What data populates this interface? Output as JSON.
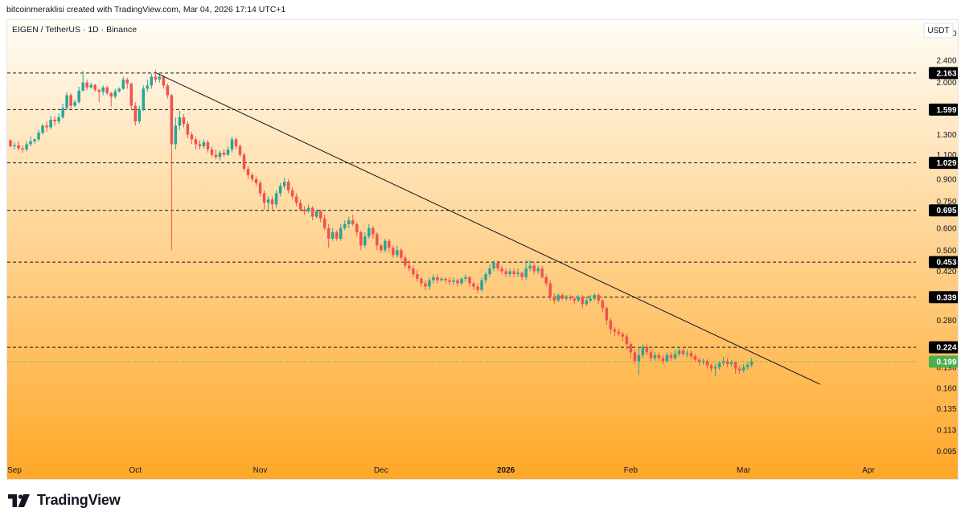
{
  "header": {
    "text": "bitcoinmeraklisi created with TradingView.com, Mar 04, 2026 17:14 UTC+1"
  },
  "footer": {
    "brand": "TradingView"
  },
  "colors": {
    "up": "#26a69a",
    "down": "#ef5350",
    "gradient_top": "#fffdf6",
    "gradient_bottom": "#ffa726",
    "level_label_bg": "#000000",
    "last_price_bg": "#4caf50"
  },
  "chart_data": {
    "type": "candlestick",
    "symbol_title": "EIGEN / TetherUS · 1D · Binance",
    "currency": "USDT",
    "y_scale": "log",
    "ylim": [
      0.085,
      3.35
    ],
    "y_ticks": [
      "3.000",
      "2.400",
      "2.000",
      "1.600",
      "1.300",
      "1.100",
      "0.900",
      "0.750",
      "0.600",
      "0.500",
      "0.420",
      "0.340",
      "0.280",
      "0.230",
      "0.190",
      "0.160",
      "0.135",
      "0.113",
      "0.095"
    ],
    "x_labels": [
      {
        "label": "Sep",
        "date": "2025-09-01"
      },
      {
        "label": "Oct",
        "date": "2025-10-01"
      },
      {
        "label": "Nov",
        "date": "2025-11-01"
      },
      {
        "label": "Dec",
        "date": "2025-12-01"
      },
      {
        "label": "2026",
        "date": "2026-01-01",
        "bold": true
      },
      {
        "label": "Feb",
        "date": "2026-02-01"
      },
      {
        "label": "Mar",
        "date": "2026-03-01"
      },
      {
        "label": "Apr",
        "date": "2026-04-01"
      }
    ],
    "x_start_date": "2025-08-31",
    "x_end_date": "2026-04-12",
    "horizontal_levels": [
      2.163,
      1.599,
      1.029,
      0.695,
      0.453,
      0.339,
      0.224
    ],
    "last_price": 0.199,
    "trendline": {
      "from": {
        "date": "2025-10-06",
        "value": 2.17
      },
      "to": {
        "date": "2026-03-20",
        "value": 0.165
      }
    },
    "candles": [
      [
        "2025-08-31",
        1.24,
        1.18,
        1.25,
        1.17
      ],
      [
        "2025-09-01",
        1.18,
        1.19,
        1.22,
        1.15
      ],
      [
        "2025-09-02",
        1.19,
        1.16,
        1.23,
        1.14
      ],
      [
        "2025-09-03",
        1.16,
        1.15,
        1.19,
        1.12
      ],
      [
        "2025-09-04",
        1.15,
        1.2,
        1.23,
        1.13
      ],
      [
        "2025-09-05",
        1.2,
        1.23,
        1.28,
        1.18
      ],
      [
        "2025-09-06",
        1.23,
        1.25,
        1.26,
        1.2
      ],
      [
        "2025-09-07",
        1.25,
        1.32,
        1.35,
        1.23
      ],
      [
        "2025-09-08",
        1.32,
        1.4,
        1.42,
        1.3
      ],
      [
        "2025-09-09",
        1.4,
        1.38,
        1.45,
        1.33
      ],
      [
        "2025-09-10",
        1.38,
        1.47,
        1.52,
        1.36
      ],
      [
        "2025-09-11",
        1.47,
        1.45,
        1.51,
        1.4
      ],
      [
        "2025-09-12",
        1.45,
        1.5,
        1.55,
        1.42
      ],
      [
        "2025-09-13",
        1.5,
        1.62,
        1.68,
        1.48
      ],
      [
        "2025-09-14",
        1.62,
        1.8,
        1.85,
        1.6
      ],
      [
        "2025-09-15",
        1.8,
        1.65,
        1.83,
        1.6
      ],
      [
        "2025-09-16",
        1.65,
        1.7,
        1.74,
        1.63
      ],
      [
        "2025-09-17",
        1.7,
        1.87,
        1.93,
        1.68
      ],
      [
        "2025-09-18",
        1.87,
        2.0,
        2.2,
        1.86
      ],
      [
        "2025-09-19",
        2.0,
        1.92,
        2.05,
        1.88
      ],
      [
        "2025-09-20",
        1.92,
        1.96,
        2.0,
        1.9
      ],
      [
        "2025-09-21",
        1.96,
        1.88,
        1.98,
        1.85
      ],
      [
        "2025-09-22",
        1.88,
        1.85,
        1.9,
        1.7
      ],
      [
        "2025-09-23",
        1.85,
        1.92,
        1.95,
        1.8
      ],
      [
        "2025-09-24",
        1.92,
        1.83,
        1.94,
        1.8
      ],
      [
        "2025-09-25",
        1.83,
        1.78,
        1.85,
        1.64
      ],
      [
        "2025-09-26",
        1.78,
        1.86,
        1.9,
        1.75
      ],
      [
        "2025-09-27",
        1.86,
        1.9,
        1.92,
        1.84
      ],
      [
        "2025-09-28",
        1.9,
        2.05,
        2.1,
        1.88
      ],
      [
        "2025-09-29",
        2.05,
        1.98,
        2.08,
        1.9
      ],
      [
        "2025-09-30",
        1.98,
        1.65,
        2.0,
        1.6
      ],
      [
        "2025-10-01",
        1.65,
        1.45,
        1.7,
        1.4
      ],
      [
        "2025-10-02",
        1.45,
        1.6,
        1.65,
        1.42
      ],
      [
        "2025-10-03",
        1.6,
        1.9,
        1.95,
        1.58
      ],
      [
        "2025-10-04",
        1.9,
        1.95,
        2.05,
        1.85
      ],
      [
        "2025-10-05",
        1.95,
        2.1,
        2.15,
        1.9
      ],
      [
        "2025-10-06",
        2.1,
        2.05,
        2.22,
        2.0
      ],
      [
        "2025-10-07",
        2.05,
        2.1,
        2.15,
        2.0
      ],
      [
        "2025-10-08",
        2.1,
        1.95,
        2.12,
        1.9
      ],
      [
        "2025-10-09",
        1.95,
        1.8,
        1.98,
        1.75
      ],
      [
        "2025-10-10",
        1.8,
        1.2,
        1.82,
        0.5
      ],
      [
        "2025-10-11",
        1.2,
        1.4,
        1.5,
        1.15
      ],
      [
        "2025-10-12",
        1.4,
        1.5,
        1.58,
        1.35
      ],
      [
        "2025-10-13",
        1.5,
        1.42,
        1.54,
        1.38
      ],
      [
        "2025-10-14",
        1.42,
        1.3,
        1.45,
        1.26
      ],
      [
        "2025-10-15",
        1.3,
        1.25,
        1.33,
        1.2
      ],
      [
        "2025-10-16",
        1.25,
        1.2,
        1.28,
        1.15
      ],
      [
        "2025-10-17",
        1.2,
        1.18,
        1.24,
        1.15
      ],
      [
        "2025-10-18",
        1.18,
        1.22,
        1.25,
        1.16
      ],
      [
        "2025-10-19",
        1.22,
        1.15,
        1.24,
        1.12
      ],
      [
        "2025-10-20",
        1.15,
        1.1,
        1.18,
        1.08
      ],
      [
        "2025-10-21",
        1.1,
        1.08,
        1.15,
        1.06
      ],
      [
        "2025-10-22",
        1.08,
        1.12,
        1.14,
        1.05
      ],
      [
        "2025-10-23",
        1.12,
        1.1,
        1.15,
        1.08
      ],
      [
        "2025-10-24",
        1.1,
        1.15,
        1.18,
        1.09
      ],
      [
        "2025-10-25",
        1.15,
        1.25,
        1.28,
        1.12
      ],
      [
        "2025-10-26",
        1.25,
        1.18,
        1.27,
        1.15
      ],
      [
        "2025-10-27",
        1.18,
        1.1,
        1.2,
        1.08
      ],
      [
        "2025-10-28",
        1.1,
        0.98,
        1.12,
        0.96
      ],
      [
        "2025-10-29",
        0.98,
        0.93,
        1.0,
        0.9
      ],
      [
        "2025-10-30",
        0.93,
        0.9,
        0.95,
        0.88
      ],
      [
        "2025-10-31",
        0.9,
        0.87,
        0.92,
        0.85
      ],
      [
        "2025-11-01",
        0.87,
        0.8,
        0.89,
        0.78
      ],
      [
        "2025-11-02",
        0.8,
        0.74,
        0.82,
        0.7
      ],
      [
        "2025-11-03",
        0.74,
        0.76,
        0.78,
        0.7
      ],
      [
        "2025-11-04",
        0.76,
        0.73,
        0.78,
        0.7
      ],
      [
        "2025-11-05",
        0.73,
        0.8,
        0.82,
        0.71
      ],
      [
        "2025-11-06",
        0.8,
        0.85,
        0.87,
        0.78
      ],
      [
        "2025-11-07",
        0.85,
        0.88,
        0.91,
        0.83
      ],
      [
        "2025-11-08",
        0.88,
        0.82,
        0.9,
        0.8
      ],
      [
        "2025-11-09",
        0.82,
        0.78,
        0.84,
        0.76
      ],
      [
        "2025-11-10",
        0.78,
        0.74,
        0.8,
        0.72
      ],
      [
        "2025-11-11",
        0.74,
        0.7,
        0.76,
        0.69
      ],
      [
        "2025-11-12",
        0.7,
        0.69,
        0.72,
        0.67
      ],
      [
        "2025-11-13",
        0.69,
        0.71,
        0.73,
        0.68
      ],
      [
        "2025-11-14",
        0.71,
        0.66,
        0.72,
        0.64
      ],
      [
        "2025-11-15",
        0.66,
        0.69,
        0.7,
        0.65
      ],
      [
        "2025-11-16",
        0.69,
        0.65,
        0.7,
        0.63
      ],
      [
        "2025-11-17",
        0.65,
        0.6,
        0.67,
        0.59
      ],
      [
        "2025-11-18",
        0.6,
        0.55,
        0.62,
        0.51
      ],
      [
        "2025-11-19",
        0.55,
        0.58,
        0.6,
        0.54
      ],
      [
        "2025-11-20",
        0.58,
        0.55,
        0.59,
        0.54
      ],
      [
        "2025-11-21",
        0.55,
        0.6,
        0.62,
        0.54
      ],
      [
        "2025-11-22",
        0.6,
        0.62,
        0.64,
        0.59
      ],
      [
        "2025-11-23",
        0.62,
        0.64,
        0.66,
        0.6
      ],
      [
        "2025-11-24",
        0.64,
        0.62,
        0.67,
        0.61
      ],
      [
        "2025-11-25",
        0.62,
        0.58,
        0.63,
        0.56
      ],
      [
        "2025-11-26",
        0.58,
        0.52,
        0.59,
        0.5
      ],
      [
        "2025-11-27",
        0.52,
        0.56,
        0.58,
        0.51
      ],
      [
        "2025-11-28",
        0.56,
        0.6,
        0.62,
        0.55
      ],
      [
        "2025-11-29",
        0.6,
        0.57,
        0.61,
        0.55
      ],
      [
        "2025-11-30",
        0.57,
        0.52,
        0.58,
        0.5
      ],
      [
        "2025-12-01",
        0.52,
        0.5,
        0.53,
        0.49
      ],
      [
        "2025-12-02",
        0.5,
        0.54,
        0.55,
        0.49
      ],
      [
        "2025-12-03",
        0.54,
        0.51,
        0.55,
        0.49
      ],
      [
        "2025-12-04",
        0.51,
        0.48,
        0.52,
        0.47
      ],
      [
        "2025-12-05",
        0.48,
        0.5,
        0.52,
        0.47
      ],
      [
        "2025-12-06",
        0.5,
        0.47,
        0.51,
        0.46
      ],
      [
        "2025-12-07",
        0.47,
        0.44,
        0.48,
        0.43
      ],
      [
        "2025-12-08",
        0.44,
        0.43,
        0.46,
        0.42
      ],
      [
        "2025-12-09",
        0.43,
        0.41,
        0.44,
        0.4
      ],
      [
        "2025-12-10",
        0.41,
        0.395,
        0.425,
        0.385
      ],
      [
        "2025-12-11",
        0.395,
        0.38,
        0.4,
        0.37
      ],
      [
        "2025-12-12",
        0.38,
        0.37,
        0.39,
        0.36
      ],
      [
        "2025-12-13",
        0.37,
        0.39,
        0.4,
        0.36
      ],
      [
        "2025-12-14",
        0.39,
        0.4,
        0.41,
        0.38
      ],
      [
        "2025-12-15",
        0.4,
        0.39,
        0.41,
        0.38
      ],
      [
        "2025-12-16",
        0.39,
        0.395,
        0.4,
        0.385
      ],
      [
        "2025-12-17",
        0.395,
        0.39,
        0.4,
        0.38
      ],
      [
        "2025-12-18",
        0.39,
        0.385,
        0.4,
        0.375
      ],
      [
        "2025-12-19",
        0.385,
        0.39,
        0.4,
        0.375
      ],
      [
        "2025-12-20",
        0.39,
        0.38,
        0.395,
        0.37
      ],
      [
        "2025-12-21",
        0.38,
        0.395,
        0.4,
        0.375
      ],
      [
        "2025-12-22",
        0.395,
        0.4,
        0.41,
        0.385
      ],
      [
        "2025-12-23",
        0.4,
        0.38,
        0.405,
        0.37
      ],
      [
        "2025-12-24",
        0.38,
        0.37,
        0.385,
        0.36
      ],
      [
        "2025-12-25",
        0.37,
        0.36,
        0.38,
        0.35
      ],
      [
        "2025-12-26",
        0.36,
        0.39,
        0.4,
        0.355
      ],
      [
        "2025-12-27",
        0.39,
        0.41,
        0.42,
        0.38
      ],
      [
        "2025-12-28",
        0.41,
        0.43,
        0.445,
        0.4
      ],
      [
        "2025-12-29",
        0.43,
        0.45,
        0.46,
        0.42
      ],
      [
        "2025-12-30",
        0.45,
        0.43,
        0.46,
        0.42
      ],
      [
        "2025-12-31",
        0.43,
        0.42,
        0.44,
        0.41
      ],
      [
        "2026-01-01",
        0.42,
        0.41,
        0.43,
        0.4
      ],
      [
        "2026-01-02",
        0.41,
        0.42,
        0.43,
        0.4
      ],
      [
        "2026-01-03",
        0.42,
        0.41,
        0.43,
        0.4
      ],
      [
        "2026-01-04",
        0.41,
        0.415,
        0.43,
        0.4
      ],
      [
        "2026-01-05",
        0.415,
        0.4,
        0.42,
        0.39
      ],
      [
        "2026-01-06",
        0.4,
        0.43,
        0.46,
        0.39
      ],
      [
        "2026-01-07",
        0.43,
        0.44,
        0.46,
        0.42
      ],
      [
        "2026-01-08",
        0.44,
        0.42,
        0.45,
        0.41
      ],
      [
        "2026-01-09",
        0.42,
        0.43,
        0.44,
        0.41
      ],
      [
        "2026-01-10",
        0.43,
        0.4,
        0.44,
        0.395
      ],
      [
        "2026-01-11",
        0.4,
        0.38,
        0.41,
        0.37
      ],
      [
        "2026-01-12",
        0.38,
        0.34,
        0.39,
        0.33
      ],
      [
        "2026-01-13",
        0.34,
        0.33,
        0.35,
        0.32
      ],
      [
        "2026-01-14",
        0.33,
        0.345,
        0.35,
        0.325
      ],
      [
        "2026-01-15",
        0.345,
        0.335,
        0.35,
        0.33
      ],
      [
        "2026-01-16",
        0.335,
        0.34,
        0.345,
        0.33
      ],
      [
        "2026-01-17",
        0.34,
        0.335,
        0.345,
        0.33
      ],
      [
        "2026-01-18",
        0.335,
        0.33,
        0.34,
        0.32
      ],
      [
        "2026-01-19",
        0.33,
        0.34,
        0.345,
        0.325
      ],
      [
        "2026-01-20",
        0.34,
        0.32,
        0.345,
        0.31
      ],
      [
        "2026-01-21",
        0.32,
        0.33,
        0.34,
        0.315
      ],
      [
        "2026-01-22",
        0.33,
        0.335,
        0.345,
        0.325
      ],
      [
        "2026-01-23",
        0.335,
        0.345,
        0.35,
        0.33
      ],
      [
        "2026-01-24",
        0.345,
        0.33,
        0.35,
        0.32
      ],
      [
        "2026-01-25",
        0.33,
        0.31,
        0.335,
        0.3
      ],
      [
        "2026-01-26",
        0.31,
        0.28,
        0.315,
        0.27
      ],
      [
        "2026-01-27",
        0.28,
        0.26,
        0.285,
        0.25
      ],
      [
        "2026-01-28",
        0.26,
        0.255,
        0.265,
        0.245
      ],
      [
        "2026-01-29",
        0.255,
        0.25,
        0.262,
        0.245
      ],
      [
        "2026-01-30",
        0.25,
        0.245,
        0.255,
        0.235
      ],
      [
        "2026-01-31",
        0.245,
        0.23,
        0.25,
        0.22
      ],
      [
        "2026-02-01",
        0.23,
        0.215,
        0.235,
        0.205
      ],
      [
        "2026-02-02",
        0.215,
        0.2,
        0.22,
        0.195
      ],
      [
        "2026-02-03",
        0.2,
        0.21,
        0.225,
        0.178
      ],
      [
        "2026-02-04",
        0.21,
        0.225,
        0.23,
        0.205
      ],
      [
        "2026-02-05",
        0.225,
        0.215,
        0.23,
        0.21
      ],
      [
        "2026-02-06",
        0.215,
        0.205,
        0.22,
        0.2
      ],
      [
        "2026-02-07",
        0.205,
        0.21,
        0.215,
        0.2
      ],
      [
        "2026-02-08",
        0.21,
        0.205,
        0.215,
        0.2
      ],
      [
        "2026-02-09",
        0.205,
        0.2,
        0.21,
        0.195
      ],
      [
        "2026-02-10",
        0.2,
        0.21,
        0.215,
        0.198
      ],
      [
        "2026-02-11",
        0.21,
        0.205,
        0.215,
        0.2
      ],
      [
        "2026-02-12",
        0.205,
        0.212,
        0.22,
        0.202
      ],
      [
        "2026-02-13",
        0.212,
        0.218,
        0.225,
        0.208
      ],
      [
        "2026-02-14",
        0.218,
        0.212,
        0.222,
        0.208
      ],
      [
        "2026-02-15",
        0.212,
        0.214,
        0.22,
        0.206
      ],
      [
        "2026-02-16",
        0.214,
        0.208,
        0.218,
        0.203
      ],
      [
        "2026-02-17",
        0.208,
        0.202,
        0.212,
        0.198
      ],
      [
        "2026-02-18",
        0.202,
        0.198,
        0.205,
        0.193
      ],
      [
        "2026-02-19",
        0.198,
        0.2,
        0.204,
        0.194
      ],
      [
        "2026-02-20",
        0.2,
        0.193,
        0.203,
        0.188
      ],
      [
        "2026-02-21",
        0.193,
        0.188,
        0.196,
        0.183
      ],
      [
        "2026-02-22",
        0.188,
        0.19,
        0.195,
        0.176
      ],
      [
        "2026-02-23",
        0.19,
        0.197,
        0.2,
        0.186
      ],
      [
        "2026-02-24",
        0.197,
        0.2,
        0.207,
        0.192
      ],
      [
        "2026-02-25",
        0.2,
        0.195,
        0.205,
        0.19
      ],
      [
        "2026-02-26",
        0.195,
        0.198,
        0.202,
        0.191
      ],
      [
        "2026-02-27",
        0.198,
        0.188,
        0.2,
        0.18
      ],
      [
        "2026-02-28",
        0.188,
        0.185,
        0.192,
        0.18
      ],
      [
        "2026-03-01",
        0.185,
        0.19,
        0.195,
        0.182
      ],
      [
        "2026-03-02",
        0.19,
        0.194,
        0.198,
        0.186
      ],
      [
        "2026-03-03",
        0.194,
        0.199,
        0.205,
        0.19
      ]
    ]
  }
}
